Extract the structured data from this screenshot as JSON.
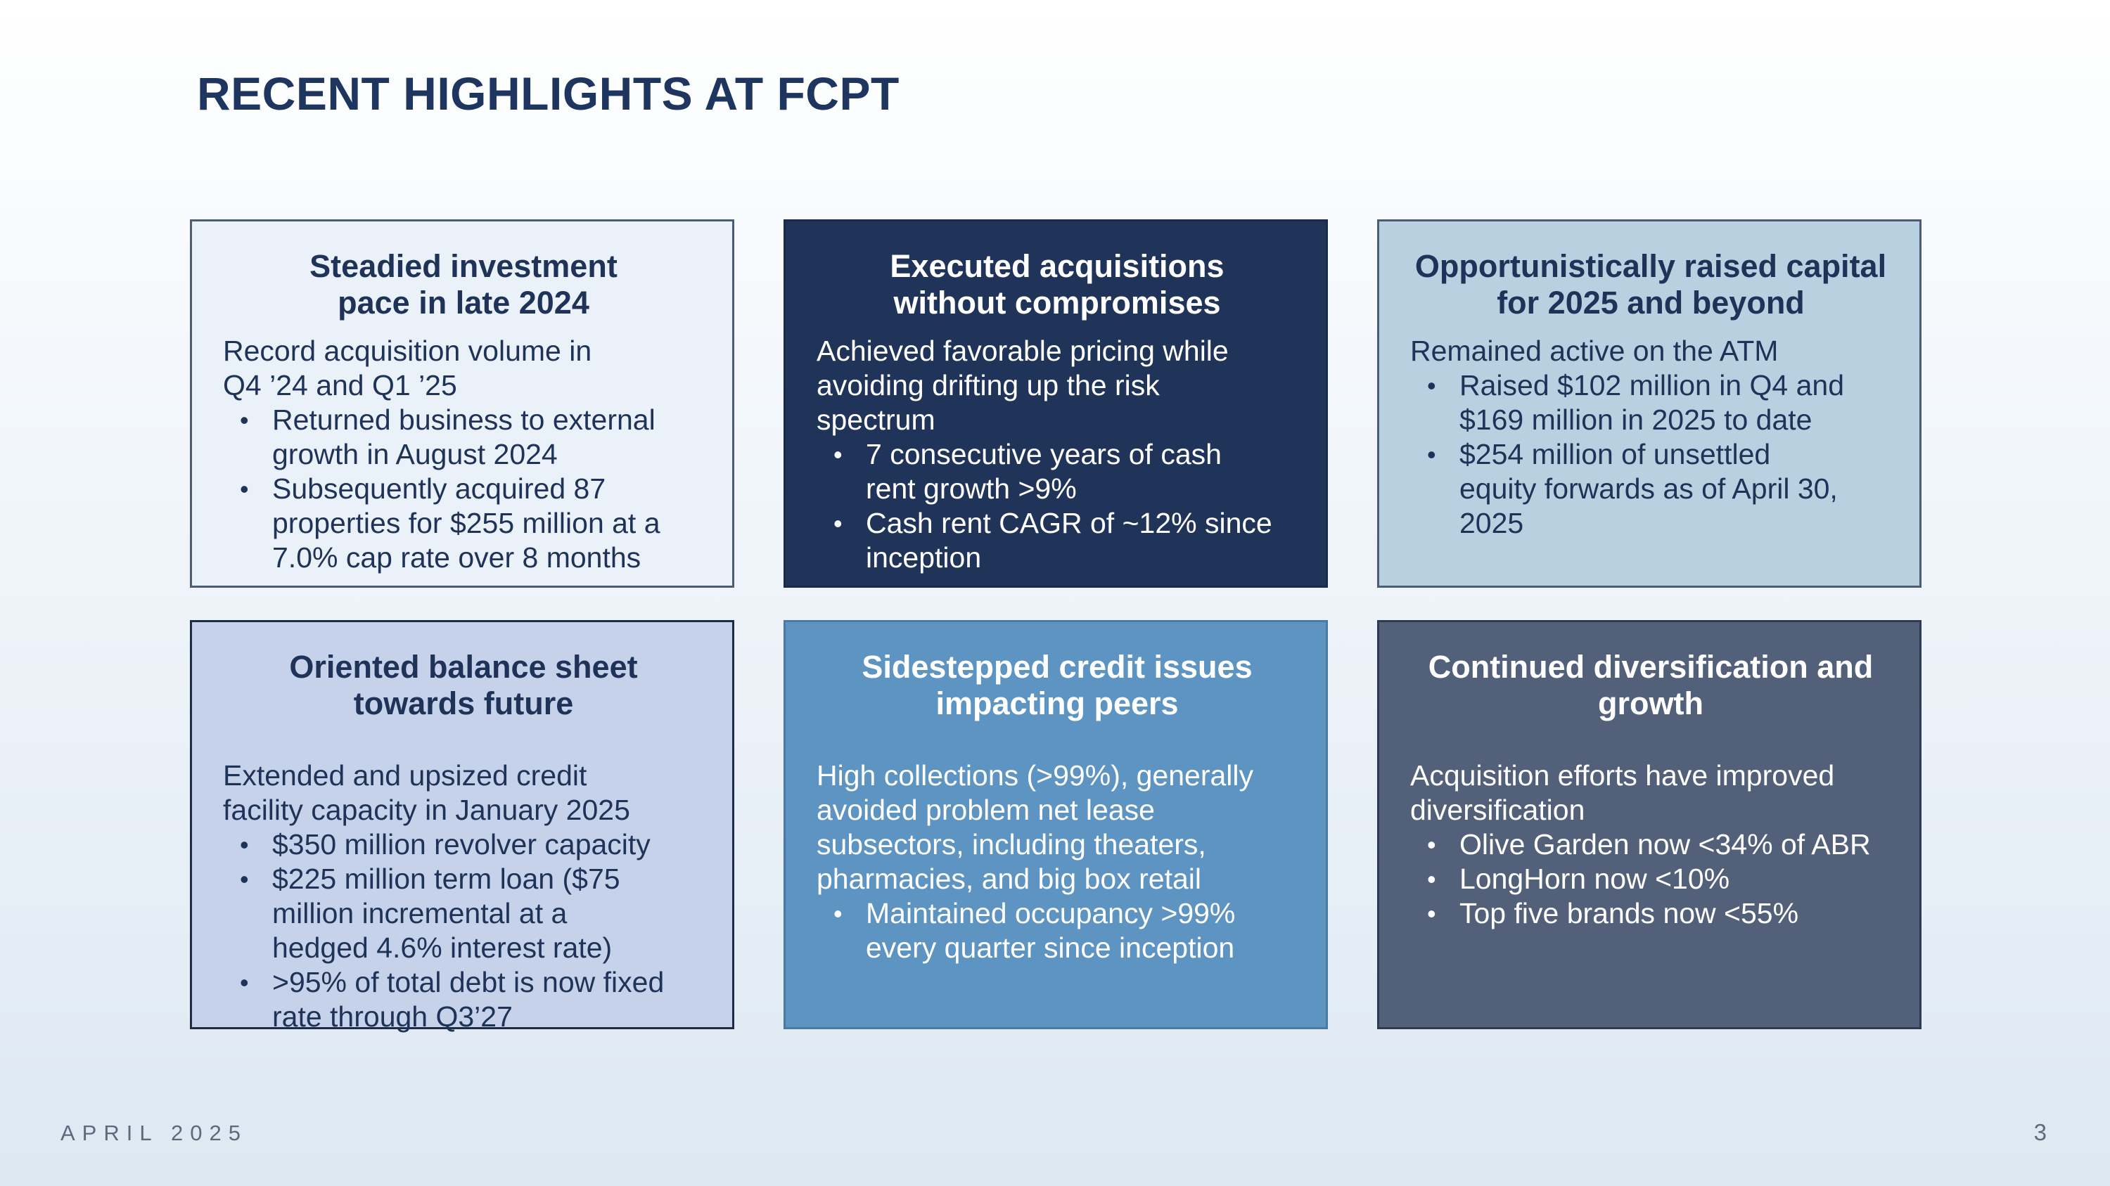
{
  "page": {
    "title": "RECENT HIGHLIGHTS AT FCPT",
    "footer_date": "APRIL 2025",
    "page_number": "3"
  },
  "colors": {
    "title": "#1e3560",
    "card1_bg": "#eaf1f9",
    "card2_bg": "#20345a",
    "card3_bg": "#b8d0e0",
    "card4_bg": "#c5d2ea",
    "card5_bg": "#5d94c2",
    "card6_bg": "#53607a"
  },
  "cards": [
    {
      "title_lines": [
        "Steadied investment",
        "pace in late 2024"
      ],
      "intro_lines": [
        "Record acquisition volume in",
        "Q4 ’24 and Q1 ’25"
      ],
      "bullets": [
        [
          "Returned business to external",
          "growth in August 2024"
        ],
        [
          "Subsequently acquired 87",
          "properties for $255 million at a",
          "7.0% cap rate over 8 months"
        ]
      ]
    },
    {
      "title_lines": [
        "Executed acquisitions",
        "without compromises"
      ],
      "intro_lines": [
        "Achieved favorable pricing while",
        "avoiding drifting up the risk",
        "spectrum"
      ],
      "bullets": [
        [
          "7 consecutive years of cash",
          "rent growth >9%"
        ],
        [
          "Cash rent CAGR of ~12% since",
          "inception"
        ]
      ]
    },
    {
      "title_lines": [
        "Opportunistically raised capital",
        "for 2025 and beyond"
      ],
      "intro_lines": [
        "Remained active on the ATM"
      ],
      "bullets": [
        [
          "Raised $102 million in Q4 and",
          "$169 million in 2025 to date"
        ],
        [
          "$254 million of unsettled",
          "equity forwards as of April 30,",
          "2025"
        ]
      ]
    },
    {
      "title_lines": [
        "Oriented balance sheet",
        "towards future"
      ],
      "intro_lines": [
        "Extended and upsized credit",
        "facility capacity in January 2025"
      ],
      "bullets": [
        [
          "$350 million revolver capacity"
        ],
        [
          "$225 million term loan ($75",
          "million incremental at a",
          "hedged 4.6% interest rate)"
        ],
        [
          ">95% of total debt is now fixed",
          "rate through Q3’27"
        ]
      ]
    },
    {
      "title_lines": [
        "Sidestepped credit issues",
        "impacting peers"
      ],
      "intro_lines": [
        "High collections (>99%), generally",
        "avoided problem net lease",
        "subsectors, including theaters,",
        "pharmacies, and big box retail"
      ],
      "bullets": [
        [
          "Maintained occupancy >99%",
          "every quarter since inception"
        ]
      ]
    },
    {
      "title_lines": [
        "Continued diversification and",
        "growth"
      ],
      "intro_lines": [
        "Acquisition efforts have improved",
        "diversification"
      ],
      "bullets": [
        [
          "Olive Garden now <34% of ABR"
        ],
        [
          "LongHorn now <10%"
        ],
        [
          "Top five brands now <55%"
        ]
      ]
    }
  ]
}
